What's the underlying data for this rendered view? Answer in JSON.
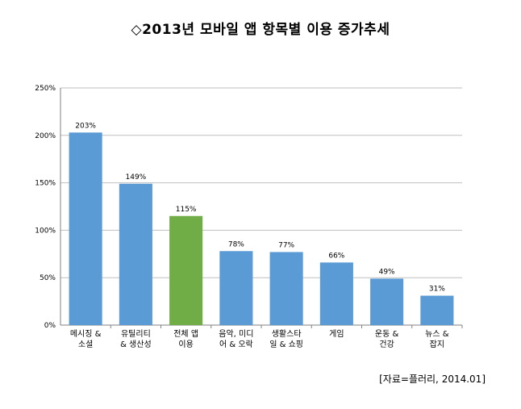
{
  "chart_data": {
    "type": "bar",
    "title": "◇2013년 모바일 앱 항목별 이용 증가추세",
    "categories": [
      [
        "메시징 &",
        "소셜"
      ],
      [
        "유틸리티",
        "& 생산성"
      ],
      [
        "전체 앱",
        "이용"
      ],
      [
        "음악, 미디",
        "어 & 오락"
      ],
      [
        "생활스타",
        "일 & 쇼핑"
      ],
      [
        "게임"
      ],
      [
        "운동 &",
        "건강"
      ],
      [
        "뉴스 &",
        "잡지"
      ]
    ],
    "values": [
      203,
      149,
      115,
      78,
      77,
      66,
      49,
      31
    ],
    "data_labels": [
      "203%",
      "149%",
      "115%",
      "78%",
      "77%",
      "66%",
      "49%",
      "31%"
    ],
    "y_ticks": [
      "0%",
      "50%",
      "100%",
      "150%",
      "200%",
      "250%"
    ],
    "ylim": [
      0,
      250
    ],
    "unit": "%",
    "grid": true,
    "colors": {
      "default": "#5b9bd5",
      "highlight": "#70ad47",
      "highlight_index": 2,
      "grid": "#bfbfbf"
    },
    "xlabel": "",
    "ylabel": ""
  },
  "source_note": "[자료=플러리, 2014.01]"
}
